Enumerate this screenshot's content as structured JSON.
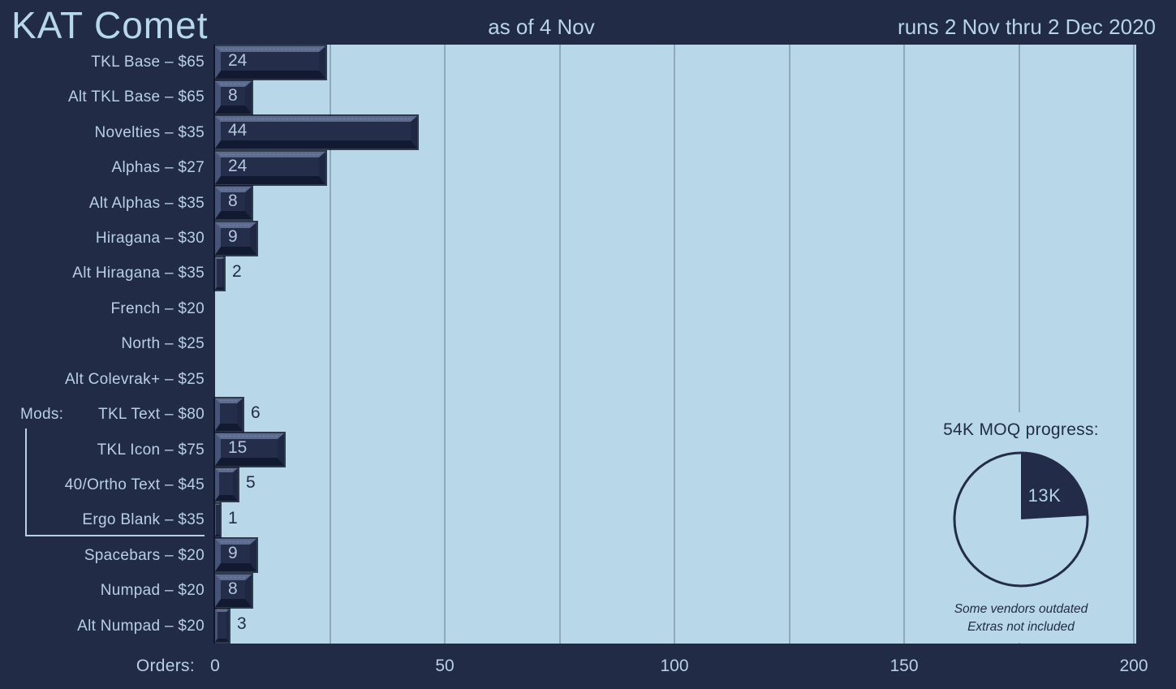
{
  "header": {
    "title": "KAT Comet",
    "as_of": "as of 4 Nov",
    "runs": "runs 2 Nov thru 2 Dec 2020"
  },
  "colors": {
    "background": "#212b46",
    "plot_background": "#b8d8e9",
    "gridline": "#8fa8c0",
    "light_text": "#b9cfe4",
    "dark_text": "#222c48",
    "keycap_face": "#242e4b",
    "keycap_bevel_top": "#5d6b8e",
    "keycap_bevel_left": "#46547a",
    "keycap_bevel_right": "#1f2843",
    "keycap_bevel_bottom": "#111a30"
  },
  "chart_data": {
    "type": "bar",
    "orientation": "horizontal",
    "title": "KAT Comet",
    "xlabel": "Orders:",
    "xlim": [
      0,
      200
    ],
    "xticks": [
      0,
      50,
      100,
      150,
      200
    ],
    "gridline_interval": 25,
    "grid": true,
    "categories": [
      "TKL Base – $65",
      "Alt TKL Base – $65",
      "Novelties – $35",
      "Alphas – $27",
      "Alt Alphas – $35",
      "Hiragana – $30",
      "Alt Hiragana – $35",
      "French – $20",
      "North – $25",
      "Alt Colevrak+  – $25",
      "TKL Text – $80",
      "TKL Icon – $75",
      "40/Ortho Text – $45",
      "Ergo Blank – $35",
      "Spacebars – $20",
      "Numpad – $20",
      "Alt Numpad – $20"
    ],
    "values": [
      24,
      8,
      44,
      24,
      8,
      9,
      2,
      0,
      0,
      0,
      6,
      15,
      5,
      1,
      9,
      8,
      3
    ],
    "group": {
      "label": "Mods:",
      "label_row": 10,
      "bracket_rows": [
        11,
        13
      ]
    }
  },
  "pie": {
    "title": "54K MOQ progress:",
    "progress_label": "13K",
    "progress_value": 13,
    "total_value": 54,
    "footnotes": [
      "Some vendors outdated",
      "Extras not included"
    ]
  }
}
